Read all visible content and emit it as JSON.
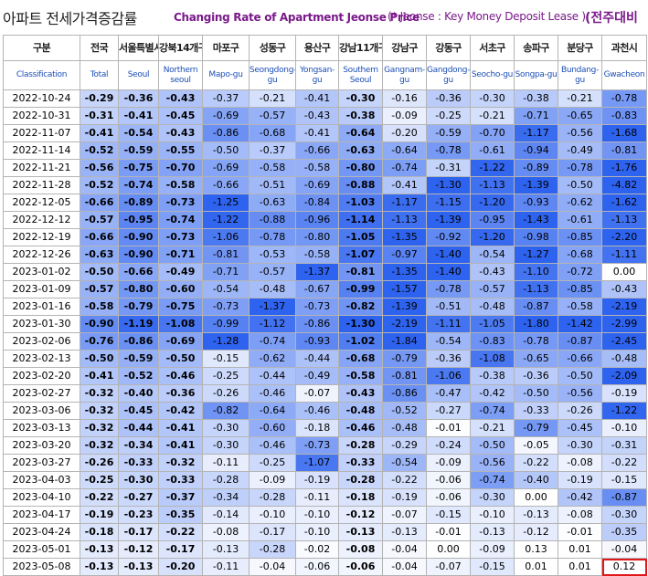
{
  "title": {
    "korean": "아파트 전세가격증감률",
    "english": "Changing Rate of Apartment Jeonse Price",
    "note": "(* Jeonse : Key Money Deposit Lease )",
    "unit": "(전주대비"
  },
  "header": {
    "first_col": {
      "ko": "구분",
      "en": "Classification"
    },
    "columns": [
      {
        "ko": "전국",
        "en": "Total"
      },
      {
        "ko": "서울특별시",
        "en": "Seoul"
      },
      {
        "ko": "강북14개구",
        "en": "Northern seoul"
      },
      {
        "ko": "마포구",
        "en": "Mapo-gu"
      },
      {
        "ko": "성동구",
        "en": "Seongdong-gu"
      },
      {
        "ko": "용산구",
        "en": "Yongsan-gu"
      },
      {
        "ko": "강남11개구",
        "en": "Southern Seoul"
      },
      {
        "ko": "강남구",
        "en": "Gangnam-gu"
      },
      {
        "ko": "강동구",
        "en": "Gangdong-gu"
      },
      {
        "ko": "서초구",
        "en": "Seocho-gu"
      },
      {
        "ko": "송파구",
        "en": "Songpa-gu"
      },
      {
        "ko": "분당구",
        "en": "Bundang-gu"
      },
      {
        "ko": "과천시",
        "en": "Gwacheon"
      }
    ]
  },
  "chart_data": {
    "type": "heatmap",
    "title": "아파트 전세가격증감률 Changing Rate of Apartment Jeonse Price",
    "x_categories": [
      "Total",
      "Seoul",
      "Northern seoul",
      "Mapo-gu",
      "Seongdong-gu",
      "Yongsan-gu",
      "Southern Seoul",
      "Gangnam-gu",
      "Gangdong-gu",
      "Seocho-gu",
      "Songpa-gu",
      "Bundang-gu",
      "Gwacheon"
    ],
    "bold_columns": [
      0,
      1,
      2,
      6
    ],
    "highlighted_cell": {
      "row": "2023-05-08",
      "column": "Gwacheon"
    },
    "colors": {
      "low": "#ffffff",
      "high": "#2e63ef"
    },
    "rows": [
      {
        "date": "2022-10-24",
        "values": [
          "-0.29",
          "-0.36",
          "-0.43",
          "-0.37",
          "-0.21",
          "-0.41",
          "-0.30",
          "-0.16",
          "-0.36",
          "-0.30",
          "-0.38",
          "-0.21",
          "-0.78"
        ]
      },
      {
        "date": "2022-10-31",
        "values": [
          "-0.31",
          "-0.41",
          "-0.45",
          "-0.69",
          "-0.57",
          "-0.43",
          "-0.38",
          "-0.09",
          "-0.25",
          "-0.21",
          "-0.71",
          "-0.65",
          "-0.83"
        ]
      },
      {
        "date": "2022-11-07",
        "values": [
          "-0.41",
          "-0.54",
          "-0.43",
          "-0.86",
          "-0.68",
          "-0.41",
          "-0.64",
          "-0.20",
          "-0.59",
          "-0.70",
          "-1.17",
          "-0.56",
          "-1.68"
        ]
      },
      {
        "date": "2022-11-14",
        "values": [
          "-0.52",
          "-0.59",
          "-0.55",
          "-0.50",
          "-0.37",
          "-0.66",
          "-0.63",
          "-0.64",
          "-0.78",
          "-0.61",
          "-0.94",
          "-0.49",
          "-0.81"
        ]
      },
      {
        "date": "2022-11-21",
        "values": [
          "-0.56",
          "-0.75",
          "-0.70",
          "-0.69",
          "-0.58",
          "-0.58",
          "-0.80",
          "-0.74",
          "-0.31",
          "-1.22",
          "-0.89",
          "-0.78",
          "-1.76"
        ]
      },
      {
        "date": "2022-11-28",
        "values": [
          "-0.52",
          "-0.74",
          "-0.58",
          "-0.66",
          "-0.51",
          "-0.69",
          "-0.88",
          "-0.41",
          "-1.30",
          "-1.13",
          "-1.39",
          "-0.50",
          "-4.82"
        ]
      },
      {
        "date": "2022-12-05",
        "values": [
          "-0.66",
          "-0.89",
          "-0.73",
          "-1.25",
          "-0.63",
          "-0.84",
          "-1.03",
          "-1.17",
          "-1.15",
          "-1.20",
          "-0.93",
          "-0.62",
          "-1.62"
        ]
      },
      {
        "date": "2022-12-12",
        "values": [
          "-0.57",
          "-0.95",
          "-0.74",
          "-1.22",
          "-0.88",
          "-0.96",
          "-1.14",
          "-1.13",
          "-1.39",
          "-0.95",
          "-1.43",
          "-0.61",
          "-1.13"
        ]
      },
      {
        "date": "2022-12-19",
        "values": [
          "-0.66",
          "-0.90",
          "-0.73",
          "-1.06",
          "-0.78",
          "-0.80",
          "-1.05",
          "-1.35",
          "-0.92",
          "-1.20",
          "-0.98",
          "-0.85",
          "-2.20"
        ]
      },
      {
        "date": "2022-12-26",
        "values": [
          "-0.63",
          "-0.90",
          "-0.71",
          "-0.81",
          "-0.53",
          "-0.58",
          "-1.07",
          "-0.97",
          "-1.40",
          "-0.54",
          "-1.27",
          "-0.68",
          "-1.11"
        ]
      },
      {
        "date": "2023-01-02",
        "values": [
          "-0.50",
          "-0.66",
          "-0.49",
          "-0.71",
          "-0.57",
          "-1.37",
          "-0.81",
          "-1.35",
          "-1.40",
          "-0.43",
          "-1.10",
          "-0.72",
          "0.00"
        ]
      },
      {
        "date": "2023-01-09",
        "values": [
          "-0.57",
          "-0.80",
          "-0.60",
          "-0.54",
          "-0.48",
          "-0.67",
          "-0.99",
          "-1.57",
          "-0.78",
          "-0.57",
          "-1.13",
          "-0.85",
          "-0.43"
        ]
      },
      {
        "date": "2023-01-16",
        "values": [
          "-0.58",
          "-0.79",
          "-0.75",
          "-0.73",
          "-1.37",
          "-0.73",
          "-0.82",
          "-1.39",
          "-0.51",
          "-0.48",
          "-0.87",
          "-0.58",
          "-2.19"
        ]
      },
      {
        "date": "2023-01-30",
        "values": [
          "-0.90",
          "-1.19",
          "-1.08",
          "-0.99",
          "-1.12",
          "-0.86",
          "-1.30",
          "-2.19",
          "-1.11",
          "-1.05",
          "-1.80",
          "-1.42",
          "-2.99"
        ]
      },
      {
        "date": "2023-02-06",
        "values": [
          "-0.76",
          "-0.86",
          "-0.69",
          "-1.28",
          "-0.74",
          "-0.93",
          "-1.02",
          "-1.84",
          "-0.54",
          "-0.83",
          "-0.78",
          "-0.87",
          "-2.45"
        ]
      },
      {
        "date": "2023-02-13",
        "values": [
          "-0.50",
          "-0.59",
          "-0.50",
          "-0.15",
          "-0.62",
          "-0.44",
          "-0.68",
          "-0.79",
          "-0.36",
          "-1.08",
          "-0.65",
          "-0.66",
          "-0.48"
        ]
      },
      {
        "date": "2023-02-20",
        "values": [
          "-0.41",
          "-0.52",
          "-0.46",
          "-0.25",
          "-0.44",
          "-0.49",
          "-0.58",
          "-0.81",
          "-1.06",
          "-0.38",
          "-0.36",
          "-0.50",
          "-2.09"
        ]
      },
      {
        "date": "2023-02-27",
        "values": [
          "-0.32",
          "-0.40",
          "-0.36",
          "-0.26",
          "-0.46",
          "-0.07",
          "-0.43",
          "-0.86",
          "-0.47",
          "-0.42",
          "-0.50",
          "-0.56",
          "-0.19"
        ]
      },
      {
        "date": "2023-03-06",
        "values": [
          "-0.32",
          "-0.45",
          "-0.42",
          "-0.82",
          "-0.64",
          "-0.46",
          "-0.48",
          "-0.52",
          "-0.27",
          "-0.74",
          "-0.33",
          "-0.26",
          "-1.22"
        ]
      },
      {
        "date": "2023-03-13",
        "values": [
          "-0.32",
          "-0.44",
          "-0.41",
          "-0.30",
          "-0.60",
          "-0.18",
          "-0.46",
          "-0.48",
          "-0.01",
          "-0.21",
          "-0.79",
          "-0.45",
          "-0.10"
        ]
      },
      {
        "date": "2023-03-20",
        "values": [
          "-0.32",
          "-0.34",
          "-0.41",
          "-0.30",
          "-0.46",
          "-0.73",
          "-0.28",
          "-0.29",
          "-0.24",
          "-0.50",
          "-0.05",
          "-0.30",
          "-0.31"
        ]
      },
      {
        "date": "2023-03-27",
        "values": [
          "-0.26",
          "-0.33",
          "-0.32",
          "-0.11",
          "-0.25",
          "-1.07",
          "-0.33",
          "-0.54",
          "-0.09",
          "-0.56",
          "-0.22",
          "-0.08",
          "-0.22"
        ]
      },
      {
        "date": "2023-04-03",
        "values": [
          "-0.25",
          "-0.30",
          "-0.33",
          "-0.28",
          "-0.09",
          "-0.19",
          "-0.28",
          "-0.22",
          "-0.06",
          "-0.74",
          "-0.40",
          "-0.19",
          "-0.15"
        ]
      },
      {
        "date": "2023-04-10",
        "values": [
          "-0.22",
          "-0.27",
          "-0.37",
          "-0.34",
          "-0.28",
          "-0.11",
          "-0.18",
          "-0.19",
          "-0.06",
          "-0.30",
          "0.00",
          "-0.42",
          "-0.87"
        ]
      },
      {
        "date": "2023-04-17",
        "values": [
          "-0.19",
          "-0.23",
          "-0.35",
          "-0.14",
          "-0.10",
          "-0.10",
          "-0.12",
          "-0.07",
          "-0.15",
          "-0.10",
          "-0.13",
          "-0.08",
          "-0.30"
        ]
      },
      {
        "date": "2023-04-24",
        "values": [
          "-0.18",
          "-0.17",
          "-0.22",
          "-0.08",
          "-0.17",
          "-0.10",
          "-0.13",
          "-0.13",
          "-0.01",
          "-0.13",
          "-0.12",
          "-0.01",
          "-0.35"
        ]
      },
      {
        "date": "2023-05-01",
        "values": [
          "-0.13",
          "-0.12",
          "-0.17",
          "-0.13",
          "-0.28",
          "-0.02",
          "-0.08",
          "-0.04",
          "0.00",
          "-0.09",
          "0.13",
          "0.01",
          "-0.04"
        ]
      },
      {
        "date": "2023-05-08",
        "values": [
          "-0.13",
          "-0.13",
          "-0.20",
          "-0.11",
          "-0.04",
          "-0.06",
          "-0.06",
          "-0.04",
          "-0.07",
          "-0.15",
          "0.01",
          "0.01",
          "0.12"
        ]
      }
    ]
  }
}
